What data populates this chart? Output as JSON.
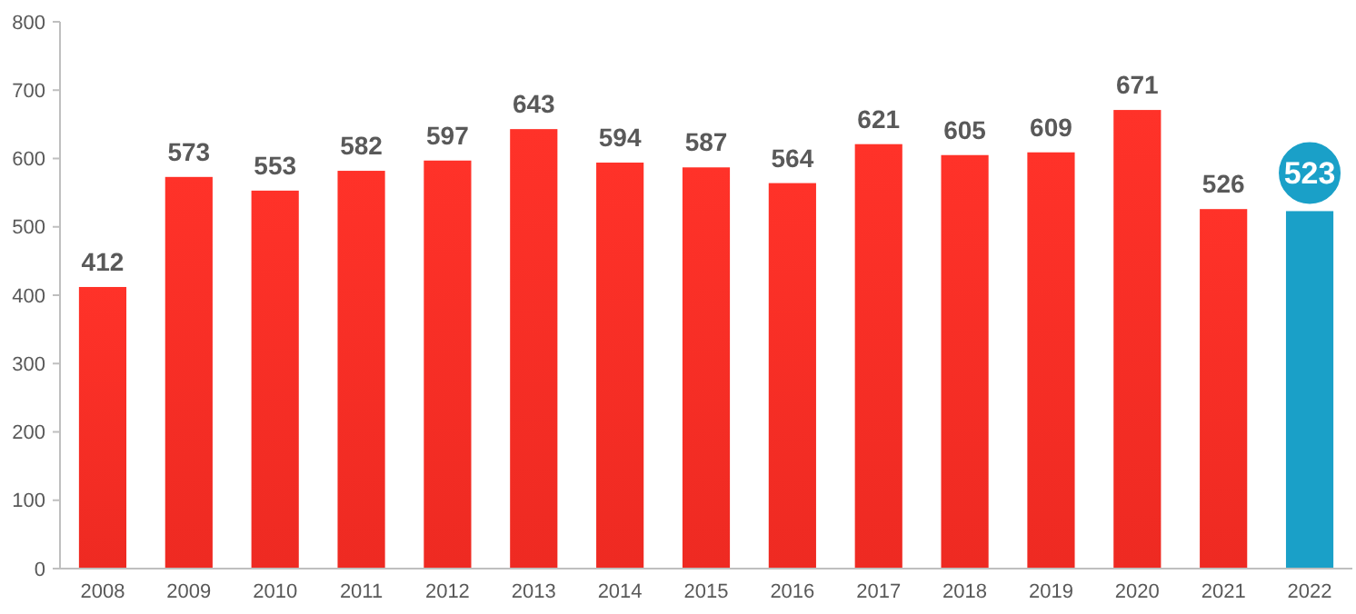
{
  "chart_data": {
    "type": "bar",
    "categories": [
      "2008",
      "2009",
      "2010",
      "2011",
      "2012",
      "2013",
      "2014",
      "2015",
      "2016",
      "2017",
      "2018",
      "2019",
      "2020",
      "2021",
      "2022"
    ],
    "values": [
      412,
      573,
      553,
      582,
      597,
      643,
      594,
      587,
      564,
      621,
      605,
      609,
      671,
      526,
      523
    ],
    "colors": [
      "#ee2a22",
      "#ee2a22",
      "#ee2a22",
      "#ee2a22",
      "#ee2a22",
      "#ee2a22",
      "#ee2a22",
      "#ee2a22",
      "#ee2a22",
      "#ee2a22",
      "#ee2a22",
      "#ee2a22",
      "#ee2a22",
      "#ee2a22",
      "#1aa0c8"
    ],
    "ylim": [
      0,
      800
    ],
    "yticks": [
      0,
      100,
      200,
      300,
      400,
      500,
      600,
      700,
      800
    ],
    "grid": false,
    "data_labels": true
  }
}
